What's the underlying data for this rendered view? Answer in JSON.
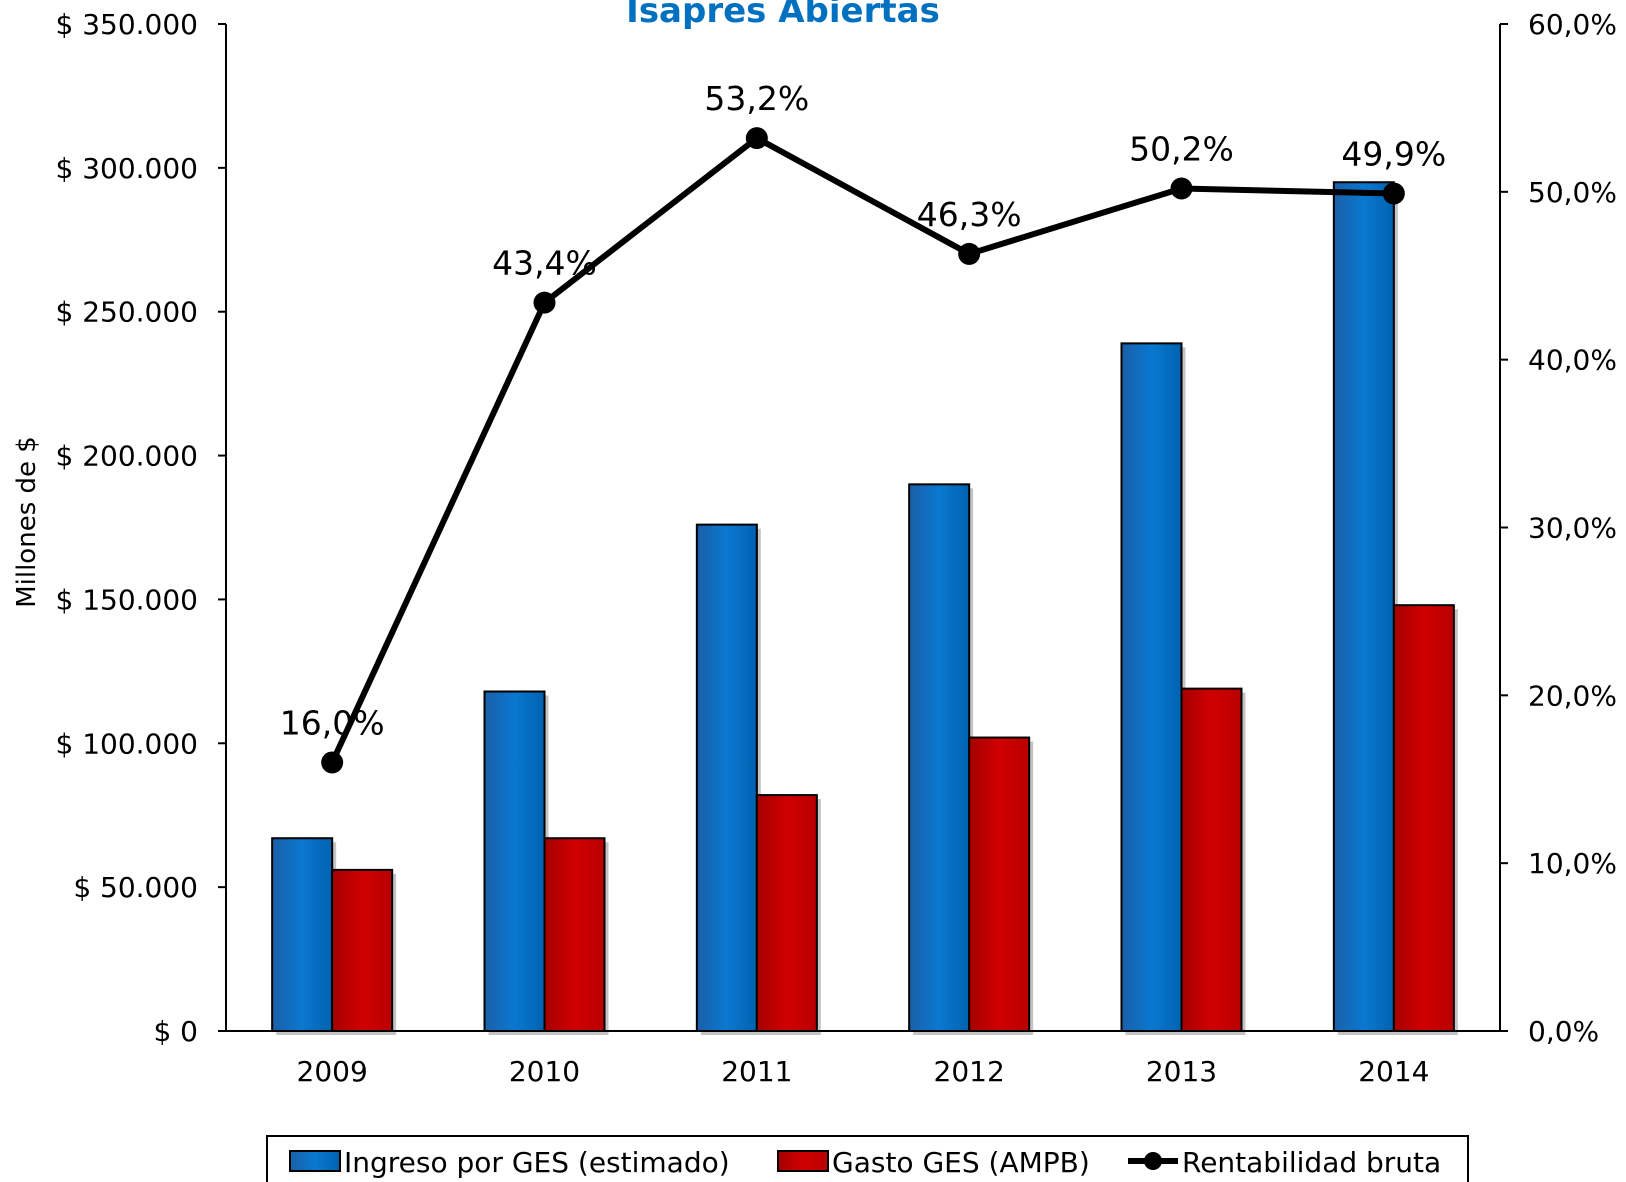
{
  "chart_data": {
    "type": "bar",
    "title": "Isapres Abiertas",
    "ylabel": "Millones de $",
    "categories": [
      "2009",
      "2010",
      "2011",
      "2012",
      "2013",
      "2014"
    ],
    "ylim": [
      0,
      350000
    ],
    "y2lim": [
      0,
      60
    ],
    "yticks": [
      {
        "value": 0,
        "label": "$ 0"
      },
      {
        "value": 50000,
        "label": "$ 50.000"
      },
      {
        "value": 100000,
        "label": "$ 100.000"
      },
      {
        "value": 150000,
        "label": "$ 150.000"
      },
      {
        "value": 200000,
        "label": "$ 200.000"
      },
      {
        "value": 250000,
        "label": "$ 250.000"
      },
      {
        "value": 300000,
        "label": "$ 300.000"
      },
      {
        "value": 350000,
        "label": "$ 350.000"
      }
    ],
    "y2ticks": [
      {
        "value": 0,
        "label": "0,0%"
      },
      {
        "value": 10,
        "label": "10,0%"
      },
      {
        "value": 20,
        "label": "20,0%"
      },
      {
        "value": 30,
        "label": "30,0%"
      },
      {
        "value": 40,
        "label": "40,0%"
      },
      {
        "value": 50,
        "label": "50,0%"
      },
      {
        "value": 60,
        "label": "60,0%"
      }
    ],
    "series": [
      {
        "name": "Ingreso por GES (estimado)",
        "type": "bar",
        "axis": "left",
        "color": "#0070c0",
        "values": [
          67000,
          118000,
          176000,
          190000,
          239000,
          295000
        ]
      },
      {
        "name": "Gasto GES (AMPB)",
        "type": "bar",
        "axis": "left",
        "color": "#c00000",
        "values": [
          56000,
          67000,
          82000,
          102000,
          119000,
          148000
        ]
      },
      {
        "name": "Rentabilidad bruta",
        "type": "line",
        "axis": "right",
        "color": "#000000",
        "values": [
          16.0,
          43.4,
          53.2,
          46.3,
          50.2,
          49.9
        ],
        "labels": [
          "16,0%",
          "43,4%",
          "53,2%",
          "46,3%",
          "50,2%",
          "49,9%"
        ]
      }
    ],
    "legend_position": "bottom",
    "grid": false
  }
}
